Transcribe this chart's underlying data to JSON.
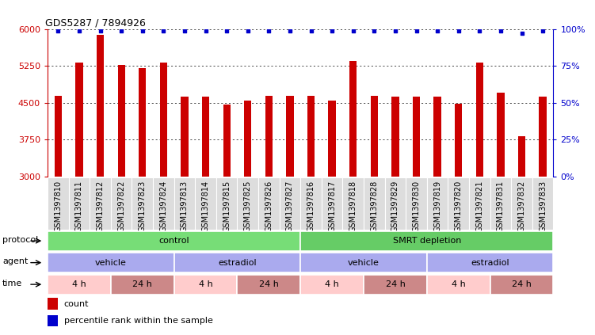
{
  "title": "GDS5287 / 7894926",
  "samples": [
    "GSM1397810",
    "GSM1397811",
    "GSM1397812",
    "GSM1397822",
    "GSM1397823",
    "GSM1397824",
    "GSM1397813",
    "GSM1397814",
    "GSM1397815",
    "GSM1397825",
    "GSM1397826",
    "GSM1397827",
    "GSM1397816",
    "GSM1397817",
    "GSM1397818",
    "GSM1397828",
    "GSM1397829",
    "GSM1397830",
    "GSM1397819",
    "GSM1397820",
    "GSM1397821",
    "GSM1397831",
    "GSM1397832",
    "GSM1397833"
  ],
  "counts": [
    4650,
    5320,
    5880,
    5270,
    5200,
    5320,
    4620,
    4620,
    4470,
    4540,
    4650,
    4650,
    4650,
    4540,
    5360,
    4650,
    4620,
    4620,
    4620,
    4480,
    5320,
    4700,
    3820,
    4620
  ],
  "percentiles": [
    99,
    99,
    99,
    99,
    99,
    99,
    99,
    99,
    99,
    99,
    99,
    99,
    99,
    99,
    99,
    99,
    99,
    99,
    99,
    99,
    99,
    99,
    97,
    99
  ],
  "ylim_left": [
    3000,
    6000
  ],
  "yticks_left": [
    3000,
    3750,
    4500,
    5250,
    6000
  ],
  "ylim_right": [
    0,
    100
  ],
  "yticks_right": [
    0,
    25,
    50,
    75,
    100
  ],
  "bar_color": "#cc0000",
  "dot_color": "#0000cc",
  "bg_color": "#ffffff",
  "tick_label_fontsize": 7,
  "protocol_groups": [
    {
      "label": "control",
      "start": 0,
      "end": 11,
      "color": "#77dd77"
    },
    {
      "label": "SMRT depletion",
      "start": 12,
      "end": 23,
      "color": "#66cc66"
    }
  ],
  "agent_groups": [
    {
      "label": "vehicle",
      "start": 0,
      "end": 5,
      "color": "#aaaaee"
    },
    {
      "label": "estradiol",
      "start": 6,
      "end": 11,
      "color": "#aaaaee"
    },
    {
      "label": "vehicle",
      "start": 12,
      "end": 17,
      "color": "#aaaaee"
    },
    {
      "label": "estradiol",
      "start": 18,
      "end": 23,
      "color": "#aaaaee"
    }
  ],
  "time_groups": [
    {
      "label": "4 h",
      "start": 0,
      "end": 2,
      "color": "#ffcccc"
    },
    {
      "label": "24 h",
      "start": 3,
      "end": 5,
      "color": "#cc8888"
    },
    {
      "label": "4 h",
      "start": 6,
      "end": 8,
      "color": "#ffcccc"
    },
    {
      "label": "24 h",
      "start": 9,
      "end": 11,
      "color": "#cc8888"
    },
    {
      "label": "4 h",
      "start": 12,
      "end": 14,
      "color": "#ffcccc"
    },
    {
      "label": "24 h",
      "start": 15,
      "end": 17,
      "color": "#cc8888"
    },
    {
      "label": "4 h",
      "start": 18,
      "end": 20,
      "color": "#ffcccc"
    },
    {
      "label": "24 h",
      "start": 21,
      "end": 23,
      "color": "#cc8888"
    }
  ]
}
